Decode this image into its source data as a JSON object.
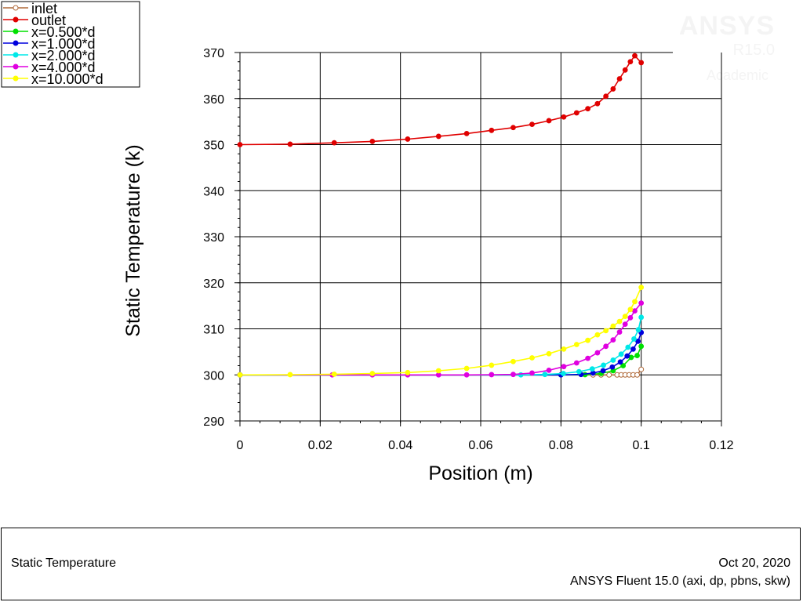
{
  "watermark": {
    "brand": "ANSYS",
    "version": "R15.0",
    "edition": "Academic"
  },
  "footer": {
    "title": "Static Temperature",
    "date": "Oct 20, 2020",
    "software": "ANSYS Fluent 15.0 (axi, dp, pbns, skw)"
  },
  "chart_data": {
    "type": "scatter",
    "xlabel": "Position (m)",
    "ylabel": "Static Temperature (k)",
    "xlim": [
      0,
      0.12
    ],
    "ylim": [
      290,
      370
    ],
    "x_ticks": [
      0,
      0.02,
      0.04,
      0.06,
      0.08,
      0.1,
      0.12
    ],
    "y_ticks": [
      290,
      300,
      310,
      320,
      330,
      340,
      350,
      360,
      370
    ],
    "x_tick_labels": [
      "0",
      "0.02",
      "0.04",
      "0.06",
      "0.08",
      "0.1",
      "0.12"
    ],
    "y_tick_labels": [
      "290",
      "300",
      "310",
      "320",
      "330",
      "340",
      "350",
      "360",
      "370"
    ],
    "grid": true,
    "legend_position": "top-left",
    "series": [
      {
        "name": "inlet",
        "color": "#b06a3a",
        "marker": "hollow-circle",
        "x": [
          0,
          0.088,
          0.09,
          0.092,
          0.094,
          0.095,
          0.096,
          0.097,
          0.098,
          0.099,
          0.1
        ],
        "y": [
          300,
          300,
          300,
          300,
          300,
          300,
          300,
          300,
          300,
          300,
          301.2
        ]
      },
      {
        "name": "outlet",
        "color": "#e00000",
        "marker": "filled-circle",
        "x": [
          0,
          0.0125,
          0.0235,
          0.033,
          0.0418,
          0.0495,
          0.0565,
          0.0627,
          0.0681,
          0.0728,
          0.077,
          0.0807,
          0.0839,
          0.0867,
          0.0891,
          0.0912,
          0.093,
          0.0946,
          0.096,
          0.0973,
          0.0984,
          0.1
        ],
        "y": [
          350,
          350.1,
          350.4,
          350.7,
          351.2,
          351.8,
          352.4,
          353.1,
          353.7,
          354.4,
          355.2,
          356,
          356.9,
          357.8,
          358.9,
          360.5,
          362.1,
          364.3,
          366.2,
          368,
          369.3,
          367.8
        ]
      },
      {
        "name": "x=0.500*d",
        "color": "#00e000",
        "marker": "filled-circle",
        "x": [
          0,
          0.08,
          0.086,
          0.09,
          0.093,
          0.0955,
          0.0975,
          0.099,
          0.1
        ],
        "y": [
          300,
          300,
          300.05,
          300.3,
          300.9,
          302,
          303.8,
          304.2,
          306.2
        ]
      },
      {
        "name": "x=1.000*d",
        "color": "#0000dd",
        "marker": "filled-circle",
        "x": [
          0,
          0.08,
          0.085,
          0.088,
          0.0905,
          0.0928,
          0.0948,
          0.0965,
          0.098,
          0.0992,
          0.1
        ],
        "y": [
          300,
          300,
          300.1,
          300.4,
          300.9,
          301.7,
          302.8,
          304.1,
          305.6,
          307.3,
          309.2
        ]
      },
      {
        "name": "x=2.000*d",
        "color": "#00e8e8",
        "marker": "filled-circle",
        "x": [
          0,
          0.07,
          0.076,
          0.0806,
          0.0845,
          0.0878,
          0.0906,
          0.093,
          0.095,
          0.0967,
          0.0982,
          0.0993,
          0.1
        ],
        "y": [
          300,
          300,
          300.1,
          300.3,
          300.7,
          301.3,
          302.1,
          303.2,
          304.5,
          306,
          307.8,
          309.8,
          312.5
        ]
      },
      {
        "name": "x=4.000*d",
        "color": "#e000e0",
        "marker": "filled-circle",
        "x": [
          0,
          0.023,
          0.033,
          0.0418,
          0.0495,
          0.0565,
          0.0627,
          0.0681,
          0.0728,
          0.077,
          0.0807,
          0.0839,
          0.0867,
          0.0891,
          0.0912,
          0.093,
          0.0946,
          0.096,
          0.0973,
          0.0984,
          0.1
        ],
        "y": [
          300,
          300,
          300,
          300,
          300,
          300,
          300.05,
          300.1,
          300.4,
          301,
          301.8,
          302.6,
          303.6,
          304.8,
          306.2,
          307.6,
          309.3,
          311,
          312.4,
          313.9,
          315.6
        ]
      },
      {
        "name": "x=10.000*d",
        "color": "#ffff00",
        "marker": "filled-circle",
        "x": [
          0,
          0.0125,
          0.0235,
          0.033,
          0.0418,
          0.0495,
          0.0565,
          0.0627,
          0.0681,
          0.0728,
          0.077,
          0.0807,
          0.0839,
          0.0867,
          0.0891,
          0.0912,
          0.093,
          0.0946,
          0.096,
          0.0973,
          0.0984,
          0.1
        ],
        "y": [
          300,
          300.05,
          300.15,
          300.3,
          300.5,
          300.9,
          301.4,
          302.1,
          302.9,
          303.7,
          304.6,
          305.6,
          306.6,
          307.5,
          308.7,
          309.6,
          310.6,
          311.6,
          312.7,
          314.2,
          315.9,
          319
        ]
      }
    ]
  }
}
